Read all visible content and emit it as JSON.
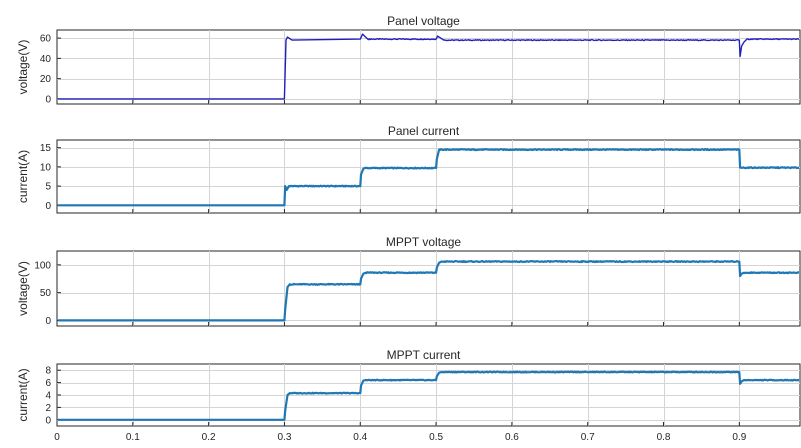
{
  "chart_data": [
    {
      "type": "line",
      "title": "Panel voltage",
      "ylabel": "voltage(V)",
      "xlim": [
        0,
        0.98
      ],
      "ylim": [
        -5,
        68
      ],
      "yticks": [
        0,
        20,
        40,
        60
      ],
      "grid": true,
      "color": "#1f1fbf",
      "series": [
        {
          "x": [
            0,
            0.3,
            0.302,
            0.304,
            0.31,
            0.4,
            0.403,
            0.41,
            0.5,
            0.502,
            0.51,
            0.9,
            0.901,
            0.903,
            0.906,
            0.91,
            0.98
          ],
          "y": [
            0,
            0,
            58,
            61,
            58,
            59,
            64,
            59,
            59,
            62,
            58,
            58,
            42,
            52,
            56,
            59,
            59
          ]
        }
      ]
    },
    {
      "type": "line",
      "title": "Panel current",
      "ylabel": "current(A)",
      "xlim": [
        0,
        0.98
      ],
      "ylim": [
        -2,
        17
      ],
      "yticks": [
        0,
        5,
        10,
        15
      ],
      "grid": true,
      "color": "#1f77b4",
      "series": [
        {
          "x": [
            0,
            0.3,
            0.301,
            0.303,
            0.306,
            0.4,
            0.401,
            0.404,
            0.406,
            0.5,
            0.501,
            0.504,
            0.9,
            0.901,
            0.98
          ],
          "y": [
            0,
            0,
            5,
            4,
            5,
            5,
            8,
            9.5,
            9.7,
            9.7,
            12,
            14.5,
            14.5,
            9.8,
            9.8
          ]
        }
      ]
    },
    {
      "type": "line",
      "title": "MPPT voltage",
      "ylabel": "voltage(V)",
      "xlim": [
        0,
        0.98
      ],
      "ylim": [
        -10,
        125
      ],
      "yticks": [
        0,
        50,
        100
      ],
      "grid": true,
      "color": "#1f77b4",
      "series": [
        {
          "x": [
            0,
            0.3,
            0.301,
            0.304,
            0.307,
            0.4,
            0.401,
            0.404,
            0.407,
            0.5,
            0.501,
            0.504,
            0.507,
            0.9,
            0.901,
            0.903,
            0.906,
            0.98
          ],
          "y": [
            0,
            0,
            20,
            60,
            65,
            65,
            75,
            84,
            86,
            86,
            95,
            104,
            106,
            106,
            80,
            84,
            86,
            86
          ]
        }
      ]
    },
    {
      "type": "line",
      "title": "MPPT current",
      "ylabel": "current(A)",
      "xlim": [
        0,
        0.98
      ],
      "ylim": [
        -1,
        9
      ],
      "yticks": [
        0,
        2,
        4,
        6,
        8
      ],
      "xticks": [
        0,
        0.1,
        0.2,
        0.3,
        0.4,
        0.5,
        0.6,
        0.7,
        0.8,
        0.9
      ],
      "grid": true,
      "color": "#1f77b4",
      "series": [
        {
          "x": [
            0,
            0.3,
            0.301,
            0.304,
            0.307,
            0.4,
            0.401,
            0.404,
            0.407,
            0.5,
            0.501,
            0.504,
            0.507,
            0.9,
            0.901,
            0.903,
            0.906,
            0.98
          ],
          "y": [
            0,
            0,
            1.5,
            4,
            4.3,
            4.3,
            5.5,
            6.3,
            6.4,
            6.4,
            7,
            7.6,
            7.7,
            7.7,
            5.8,
            6.2,
            6.4,
            6.4
          ]
        }
      ]
    }
  ]
}
